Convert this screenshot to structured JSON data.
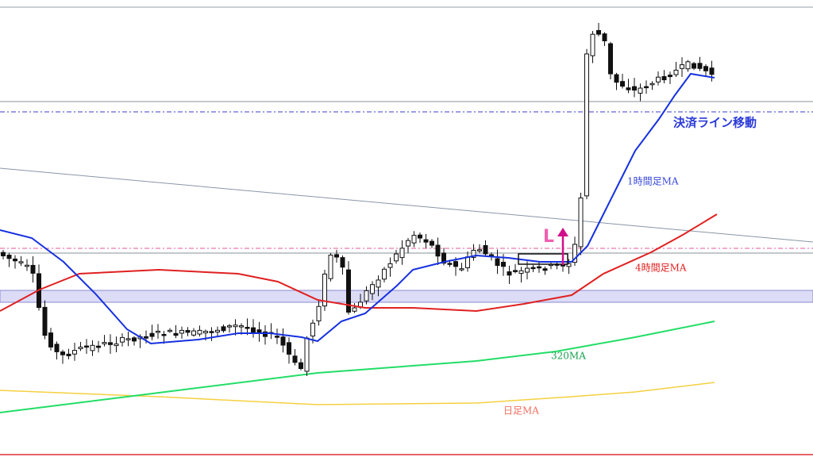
{
  "annotations": {
    "exit_line": "決済ライン移動",
    "ma_1h": "1時間足MA",
    "ma_4h": "4時間足MA",
    "ma_320": "320MA",
    "ma_daily": "日足MA",
    "entry": "L"
  }
}
